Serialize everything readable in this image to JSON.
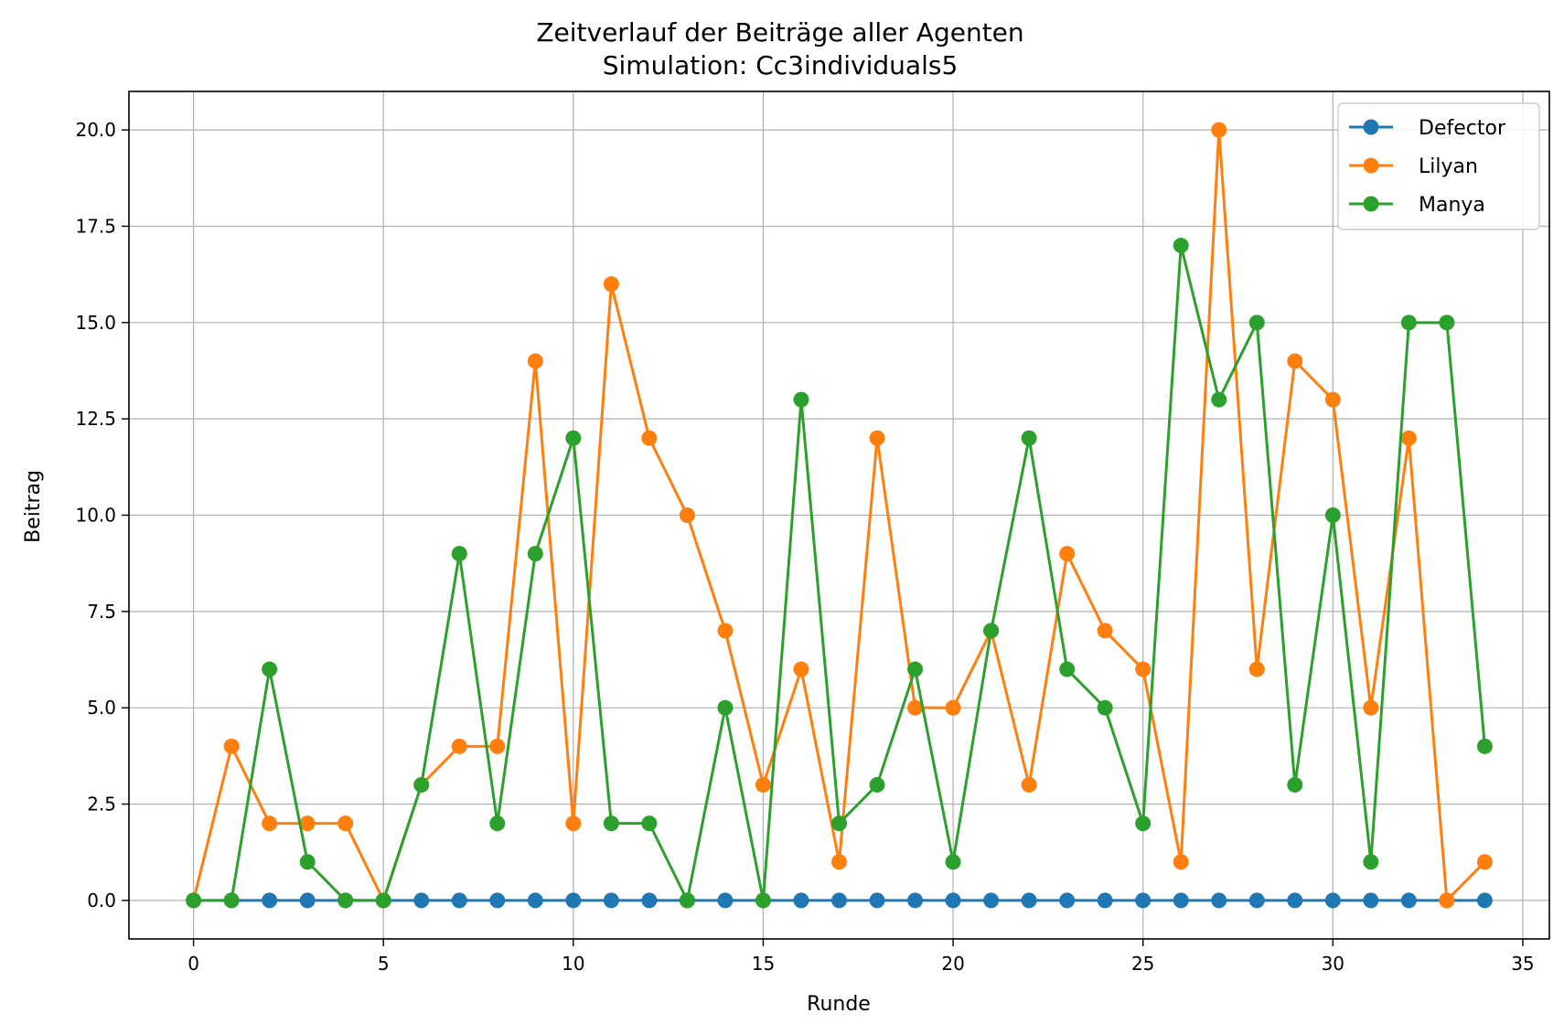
{
  "chart_data": {
    "type": "line",
    "title": "Zeitverlauf der Beiträge aller Agenten",
    "subtitle": "Simulation: Cc3individuals5",
    "xlabel": "Runde",
    "ylabel": "Beitrag",
    "xlim": [
      -1.7,
      35.7
    ],
    "ylim": [
      -1.0,
      21.0
    ],
    "xticks": [
      0,
      5,
      10,
      15,
      20,
      25,
      30,
      35
    ],
    "xtick_labels": [
      "0",
      "5",
      "10",
      "15",
      "20",
      "25",
      "30",
      "35"
    ],
    "yticks": [
      0,
      2.5,
      5,
      7.5,
      10,
      12.5,
      15,
      17.5,
      20
    ],
    "ytick_labels": [
      "0.0",
      "2.5",
      "5.0",
      "7.5",
      "10.0",
      "12.5",
      "15.0",
      "17.5",
      "20.0"
    ],
    "grid": true,
    "legend_position": "top-right",
    "x": [
      0,
      1,
      2,
      3,
      4,
      5,
      6,
      7,
      8,
      9,
      10,
      11,
      12,
      13,
      14,
      15,
      16,
      17,
      18,
      19,
      20,
      21,
      22,
      23,
      24,
      25,
      26,
      27,
      28,
      29,
      30,
      31,
      32,
      33,
      34
    ],
    "series": [
      {
        "name": "Defector",
        "color": "#1f77b4",
        "values": [
          0,
          0,
          0,
          0,
          0,
          0,
          0,
          0,
          0,
          0,
          0,
          0,
          0,
          0,
          0,
          0,
          0,
          0,
          0,
          0,
          0,
          0,
          0,
          0,
          0,
          0,
          0,
          0,
          0,
          0,
          0,
          0,
          0,
          0,
          0
        ]
      },
      {
        "name": "Lilyan",
        "color": "#ff7f0e",
        "values": [
          0,
          4,
          2,
          2,
          2,
          0,
          3,
          4,
          4,
          14,
          2,
          16,
          12,
          10,
          7,
          3,
          6,
          1,
          12,
          5,
          5,
          7,
          3,
          9,
          7,
          6,
          1,
          20,
          6,
          14,
          13,
          5,
          12,
          0,
          1
        ]
      },
      {
        "name": "Manya",
        "color": "#2ca02c",
        "values": [
          0,
          0,
          6,
          1,
          0,
          0,
          3,
          9,
          2,
          9,
          12,
          2,
          2,
          0,
          5,
          0,
          13,
          2,
          3,
          6,
          1,
          7,
          12,
          6,
          5,
          2,
          17,
          13,
          15,
          3,
          10,
          1,
          15,
          15,
          4
        ]
      }
    ]
  }
}
